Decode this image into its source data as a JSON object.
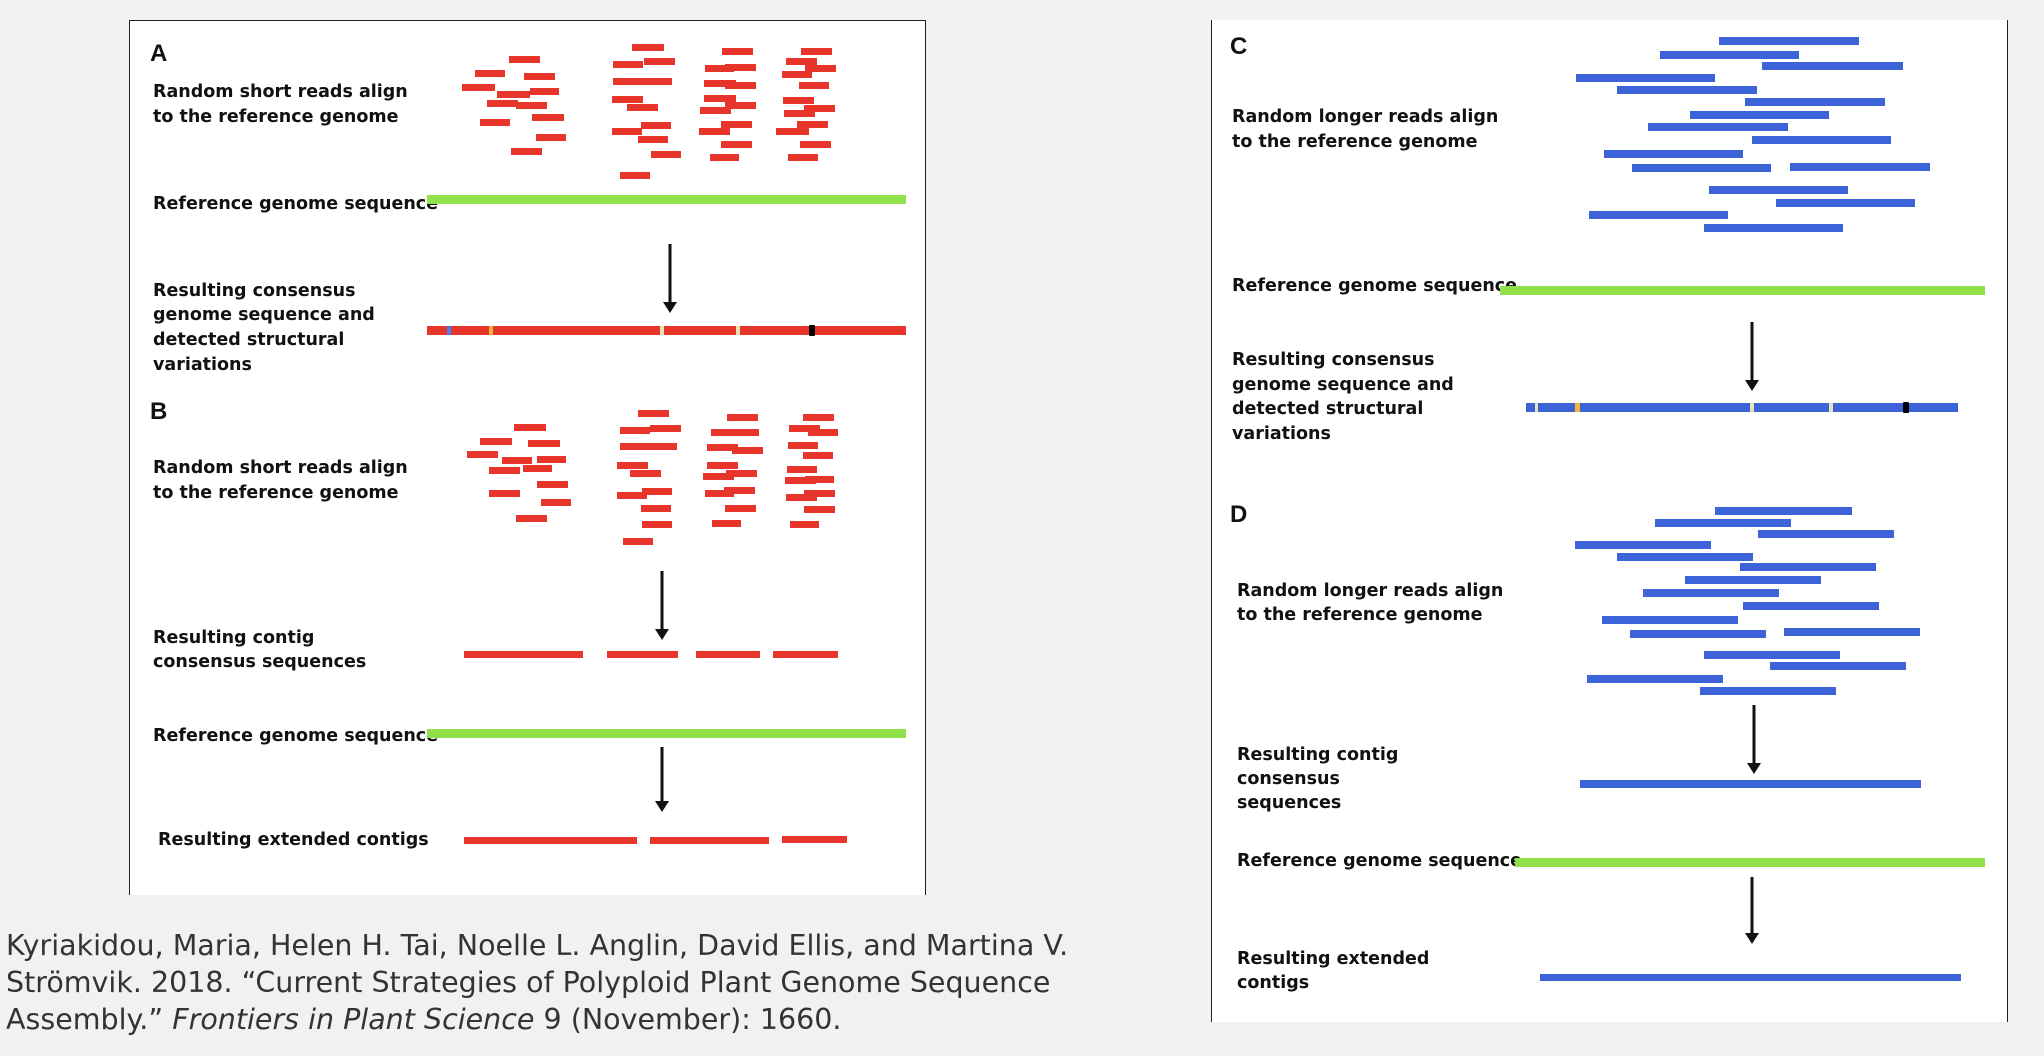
{
  "colors": {
    "short_read": "#e8352b",
    "long_read": "#3d63d9",
    "reference": "#91e24a",
    "arrow": "#111111",
    "variant_blue": "#4a7cf0",
    "variant_yellow": "#f2b63a",
    "variant_light": "#e7e0b8",
    "variant_black": "#000000"
  },
  "panels": {
    "A": {
      "letter": "A",
      "reads_label": [
        "Random short reads align",
        "to the reference genome"
      ],
      "reference_label": "Reference genome sequence",
      "consensus_label": [
        "Resulting consensus",
        "genome sequence and",
        "detected structural",
        "variations"
      ]
    },
    "B": {
      "letter": "B",
      "reads_label": [
        "Random short reads align",
        "to the reference genome"
      ],
      "contig_label": [
        "Resulting contig",
        "consensus sequences"
      ],
      "reference_label": "Reference genome sequence",
      "extended_label": "Resulting extended contigs"
    },
    "C": {
      "letter": "C",
      "reads_label": [
        "Random longer reads align",
        "to the reference genome"
      ],
      "reference_label": "Reference genome sequence",
      "consensus_label": [
        "Resulting consensus",
        "genome sequence and",
        "detected structural",
        "variations"
      ]
    },
    "D": {
      "letter": "D",
      "reads_label": [
        "Random longer reads align",
        "to the reference genome"
      ],
      "contig_label": [
        "Resulting contig",
        "consensus",
        "sequences"
      ],
      "reference_label": "Reference genome sequence",
      "extended_label": [
        "Resulting extended",
        "contigs"
      ]
    }
  },
  "caption": {
    "authors": "Kyriakidou, Maria, Helen H. Tai, Noelle L. Anglin, David Ellis, and Martina V. Strömvik. 2018. “Current Strategies of Polyploid Plant Genome Sequence Assembly.”",
    "journal": "Frontiers in Plant Science",
    "details": "9 (November): 1660."
  }
}
